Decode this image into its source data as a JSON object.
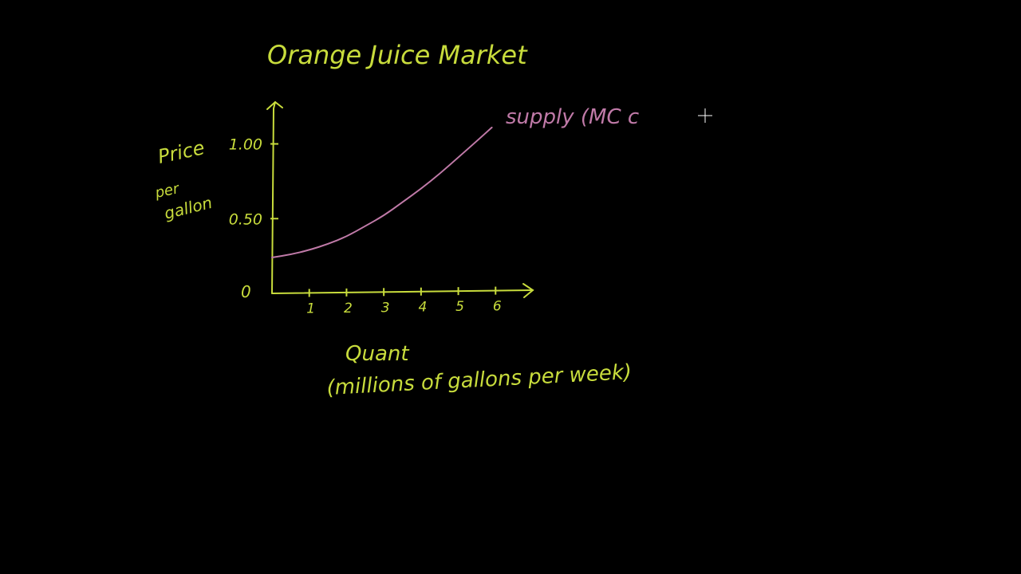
{
  "colors": {
    "background": "#000000",
    "axis_text": "#c8dc3c",
    "supply": "#c07aa8",
    "cursor": "#ffffff"
  },
  "chart_data": {
    "type": "line",
    "title": "Orange Juice Market",
    "ylabel_lines": [
      "Price",
      "per",
      "gallon"
    ],
    "xlabel_lines": [
      "Quant",
      "(millions of gallons per week)"
    ],
    "origin_label": "0",
    "y_ticks": [
      {
        "value": 0.5,
        "label": "0.50"
      },
      {
        "value": 1.0,
        "label": "1.00"
      }
    ],
    "x_ticks": [
      {
        "value": 1,
        "label": "1"
      },
      {
        "value": 2,
        "label": "2"
      },
      {
        "value": 3,
        "label": "3"
      },
      {
        "value": 4,
        "label": "4"
      },
      {
        "value": 5,
        "label": "5"
      },
      {
        "value": 6,
        "label": "6"
      }
    ],
    "xlim": [
      0,
      7.0
    ],
    "ylim": [
      0,
      1.28
    ],
    "grid": false,
    "series": [
      {
        "name": "supply (MC c",
        "x": [
          0,
          0.5,
          1,
          1.5,
          2,
          2.5,
          3,
          3.5,
          4,
          4.5,
          5,
          5.5,
          5.9
        ],
        "y": [
          0.24,
          0.26,
          0.29,
          0.33,
          0.38,
          0.45,
          0.52,
          0.61,
          0.7,
          0.8,
          0.91,
          1.02,
          1.11
        ]
      }
    ]
  }
}
